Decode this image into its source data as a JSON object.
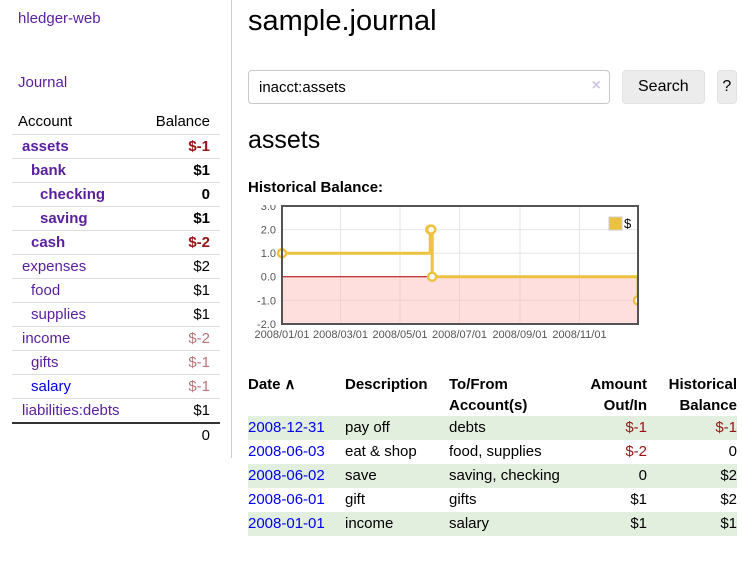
{
  "app": {
    "brand": "hledger-web"
  },
  "nav": {
    "journal": "Journal"
  },
  "sidebar": {
    "header": {
      "account": "Account",
      "balance": "Balance"
    },
    "accounts": [
      {
        "name": "assets",
        "balance": "$-1",
        "depth": 1,
        "bold": true,
        "balance_style": "neg-strong"
      },
      {
        "name": "bank",
        "balance": "$1",
        "depth": 2,
        "bold": true,
        "balance_style": "pos"
      },
      {
        "name": "checking",
        "balance": "0",
        "depth": 3,
        "bold": true,
        "balance_style": "pos"
      },
      {
        "name": "saving",
        "balance": "$1",
        "depth": 3,
        "bold": true,
        "balance_style": "pos"
      },
      {
        "name": "cash",
        "balance": "$-2",
        "depth": 2,
        "bold": true,
        "balance_style": "neg-strong"
      },
      {
        "name": "expenses",
        "balance": "$2",
        "depth": 1,
        "bold": false,
        "balance_style": "pos"
      },
      {
        "name": "food",
        "balance": "$1",
        "depth": 2,
        "bold": false,
        "balance_style": "pos"
      },
      {
        "name": "supplies",
        "balance": "$1",
        "depth": 2,
        "bold": false,
        "balance_style": "pos"
      },
      {
        "name": "income",
        "balance": "$-2",
        "depth": 1,
        "bold": false,
        "balance_style": "neg-soft"
      },
      {
        "name": "gifts",
        "balance": "$-1",
        "depth": 2,
        "bold": false,
        "balance_style": "neg-soft"
      },
      {
        "name": "salary",
        "balance": "$-1",
        "depth": 2,
        "bold": false,
        "balance_style": "neg-soft",
        "link_style": "unvisited"
      },
      {
        "name": "liabilities:debts",
        "balance": "$1",
        "depth": 1,
        "bold": false,
        "balance_style": "pos"
      }
    ],
    "total": "0"
  },
  "header": {
    "title": "sample.journal"
  },
  "search": {
    "value": "inacct:assets",
    "clear_label": "×",
    "button_label": "Search",
    "help_label": "?"
  },
  "account_view": {
    "heading": "assets",
    "chart_title": "Historical Balance:"
  },
  "chart_data": {
    "type": "line",
    "step": true,
    "series_name": "$",
    "x_range": [
      "2008-01-01",
      "2008-12-31"
    ],
    "points": [
      [
        "2008-01-01",
        1
      ],
      [
        "2008-06-01",
        2
      ],
      [
        "2008-06-02",
        2
      ],
      [
        "2008-06-03",
        0
      ],
      [
        "2008-12-31",
        -1
      ]
    ],
    "ylim": [
      -2.0,
      3.0
    ],
    "yticks": [
      3.0,
      2.0,
      1.0,
      0.0,
      -1.0,
      -2.0
    ],
    "xticks": [
      "2008/01/01",
      "2008/03/01",
      "2008/05/01",
      "2008/07/01",
      "2008/09/01",
      "2008/11/01"
    ],
    "legend": {
      "label": "$",
      "position": "top-right"
    },
    "colors": {
      "line": "#EDC240",
      "negative_fill": "#FFB6B6",
      "zero_line": "#AA0000",
      "grid": "#E6E6E6",
      "border": "#545454",
      "tick_text": "#545454"
    }
  },
  "register": {
    "sort_icon": "∧",
    "columns": {
      "date": "Date",
      "description": "Description",
      "tofrom_line1": "To/From",
      "tofrom_line2": "Account(s)",
      "amount_line1": "Amount",
      "amount_line2": "Out/In",
      "balance_line1": "Historical",
      "balance_line2": "Balance"
    },
    "rows": [
      {
        "date": "2008-12-31",
        "description": "pay off",
        "accounts": "debts",
        "amount": "$-1",
        "amount_style": "neg",
        "balance": "$-1",
        "balance_style": "neg"
      },
      {
        "date": "2008-06-03",
        "description": "eat & shop",
        "accounts": "food, supplies",
        "amount": "$-2",
        "amount_style": "neg",
        "balance": "0",
        "balance_style": "pos"
      },
      {
        "date": "2008-06-02",
        "description": "save",
        "accounts": "saving, checking",
        "amount": "0",
        "amount_style": "pos",
        "balance": "$2",
        "balance_style": "pos"
      },
      {
        "date": "2008-06-01",
        "description": "gift",
        "accounts": "gifts",
        "amount": "$1",
        "amount_style": "pos",
        "balance": "$2",
        "balance_style": "pos"
      },
      {
        "date": "2008-01-01",
        "description": "income",
        "accounts": "salary",
        "amount": "$1",
        "amount_style": "pos",
        "balance": "$1",
        "balance_style": "pos"
      }
    ]
  }
}
